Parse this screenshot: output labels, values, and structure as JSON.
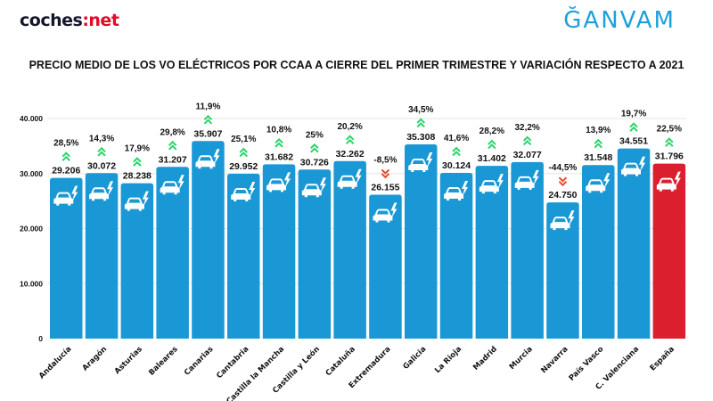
{
  "header": {
    "logo_left_main": "coches",
    "logo_left_accent": ":net",
    "logo_right": "ĞANVAM"
  },
  "chart_data": {
    "type": "bar",
    "title": "PRECIO MEDIO DE LOS VO ELÉCTRICOS POR CCAA A CIERRE DEL PRIMER TRIMESTRE Y VARIACIÓN RESPECTO A 2021",
    "xlabel": "",
    "ylabel": "",
    "ylim": [
      0,
      40000
    ],
    "yticks": [
      0,
      10000,
      20000,
      30000,
      40000
    ],
    "ytick_labels": [
      "0",
      "10.000",
      "20.000",
      "30.000",
      "40.000"
    ],
    "grid": true,
    "categories": [
      "Andalucía",
      "Aragón",
      "Asturias",
      "Baleares",
      "Canarias",
      "Cantabria",
      "Castilla la Mancha",
      "Castilla y León",
      "Cataluña",
      "Extremadura",
      "Galicia",
      "La Rioja",
      "Madrid",
      "Murcia",
      "Navarra",
      "País Vasco",
      "C. Valenciana",
      "España"
    ],
    "values": [
      29206,
      30072,
      28238,
      31207,
      35907,
      29952,
      31682,
      30726,
      32262,
      26155,
      35308,
      30124,
      31402,
      32077,
      24750,
      31548,
      34551,
      31796
    ],
    "value_labels": [
      "29.206",
      "30.072",
      "28.238",
      "31.207",
      "35.907",
      "29.952",
      "31.682",
      "30.726",
      "32.262",
      "26.155",
      "35.308",
      "30.124",
      "31.402",
      "32.077",
      "24.750",
      "31.548",
      "34.551",
      "31.796"
    ],
    "variation": [
      28.5,
      14.3,
      17.9,
      29.8,
      11.9,
      25.1,
      10.8,
      25,
      20.2,
      -8.5,
      34.5,
      41.6,
      28.2,
      32.2,
      -44.5,
      13.9,
      19.7,
      22.5
    ],
    "variation_labels": [
      "28,5%",
      "14,3%",
      "17,9%",
      "29,8%",
      "11,9%",
      "25,1%",
      "10,8%",
      "25%",
      "20,2%",
      "-8,5%",
      "34,5%",
      "41,6%",
      "28,2%",
      "32,2%",
      "-44,5%",
      "13,9%",
      "19,7%",
      "22,5%"
    ],
    "highlight_category": "España",
    "bar_icon": "electric-car-icon",
    "up_icon": "double-chevron-up-icon",
    "down_icon": "double-chevron-down-icon",
    "colors": {
      "bar": "#1a98d5",
      "highlight_bar": "#dc1f2e",
      "up_arrow": "#2bd46a",
      "down_arrow": "#ea4b2a",
      "grid": "#e6e6e6"
    }
  }
}
